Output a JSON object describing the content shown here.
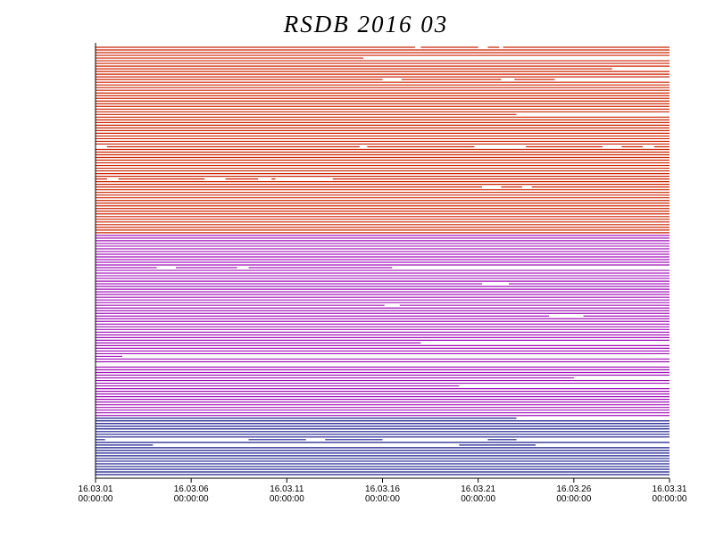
{
  "chart_data": {
    "type": "availability",
    "title": "RSDB  2016  03",
    "xlim": [
      1,
      31
    ],
    "xticks": [
      {
        "value": 1,
        "label": "16.03.01\n00:00:00"
      },
      {
        "value": 6,
        "label": "16.03.06\n00:00:00"
      },
      {
        "value": 11,
        "label": "16.03.11\n00:00:00"
      },
      {
        "value": 16,
        "label": "16.03.16\n00:00:00"
      },
      {
        "value": 21,
        "label": "16.03.21\n00:00:00"
      },
      {
        "value": 26,
        "label": "16.03.26\n00:00:00"
      },
      {
        "value": 31,
        "label": "16.03.31\n00:00:00"
      }
    ],
    "groups": [
      {
        "color": "#cc2200",
        "gaps": [
          [
            [
              17.7,
              18.0
            ],
            [
              21.0,
              21.5
            ],
            [
              22.1,
              22.3
            ]
          ],
          [],
          [],
          [],
          [
            [
              15.0,
              31
            ]
          ],
          [],
          [],
          [],
          [
            [
              28.0,
              31
            ]
          ],
          [],
          [],
          [],
          [
            [
              16.0,
              17.0
            ],
            [
              22.2,
              22.9
            ],
            [
              25.0,
              31
            ]
          ],
          [],
          [],
          [],
          [],
          [],
          [],
          [],
          [],
          [],
          [],
          [],
          [],
          [
            [
              23.0,
              31
            ]
          ],
          [],
          [],
          [],
          [],
          [],
          [],
          [],
          [],
          [],
          [],
          [],
          [
            [
              1.0,
              1.6
            ],
            [
              14.8,
              15.2
            ],
            [
              20.8,
              23.5
            ],
            [
              27.5,
              28.5
            ],
            [
              29.6,
              30.2
            ]
          ],
          [],
          [],
          [],
          [],
          [],
          [],
          [],
          [],
          [],
          [],
          [],
          [
            [
              1.6,
              2.2
            ],
            [
              6.7,
              7.8
            ],
            [
              9.5,
              10.2
            ],
            [
              10.4,
              13.4
            ]
          ],
          [],
          [],
          [
            [
              21.2,
              22.2
            ],
            [
              23.3,
              23.8
            ]
          ],
          [],
          [],
          [],
          [],
          [],
          [],
          [],
          [],
          [],
          [],
          [],
          [],
          [],
          [],
          [],
          [],
          []
        ]
      },
      {
        "color": "#a010b8",
        "gaps": [
          [],
          [],
          [],
          [],
          [],
          [],
          [],
          [],
          [],
          [],
          [],
          [],
          [
            [
              4.2,
              5.2
            ],
            [
              8.4,
              9.0
            ],
            [
              16.5,
              31
            ]
          ],
          [],
          [],
          [],
          [],
          [],
          [
            [
              21.2,
              22.6
            ]
          ],
          [],
          [],
          [],
          [],
          [],
          [],
          [],
          [
            [
              16.1,
              16.9
            ]
          ],
          [],
          [],
          [],
          [
            [
              24.7,
              26.5
            ]
          ],
          [],
          [],
          [],
          [],
          [],
          [],
          [],
          [],
          [],
          [
            [
              18.0,
              31
            ]
          ],
          [],
          [],
          [],
          [],
          [
            [
              2.4,
              31
            ]
          ],
          [],
          [],
          [
            [
              1.0,
              31
            ]
          ],
          [],
          [],
          [],
          [],
          [
            [
              26.0,
              31
            ]
          ],
          [],
          [],
          [
            [
              20.0,
              31
            ]
          ],
          [],
          [],
          [],
          [],
          [],
          [],
          [],
          [],
          [],
          [],
          []
        ]
      },
      {
        "color": "#1a1a8c",
        "gaps": [
          [
            [
              23.0,
              31
            ]
          ],
          [],
          [],
          [],
          [],
          [],
          [],
          [],
          [
            [
              1.5,
              9.0
            ],
            [
              12.0,
              13.0
            ],
            [
              16.0,
              21.5
            ],
            [
              23.0,
              31
            ]
          ],
          [],
          [
            [
              4.0,
              20.0
            ],
            [
              24.0,
              31
            ]
          ],
          [],
          [],
          [],
          [],
          [],
          [],
          [],
          [],
          [],
          [],
          []
        ]
      }
    ]
  }
}
